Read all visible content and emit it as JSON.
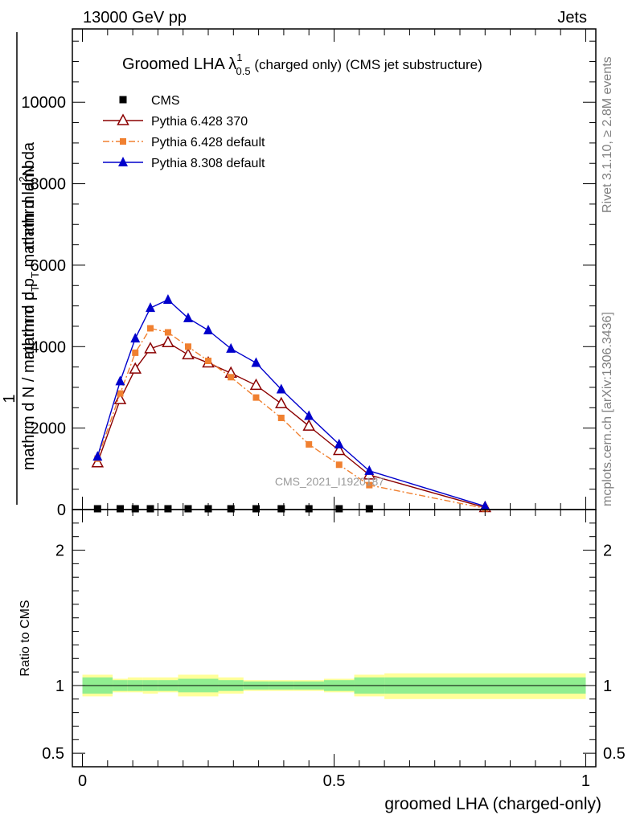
{
  "header": {
    "energy": "13000 GeV pp",
    "process": "Jets",
    "side_label_top": "Rivet 3.1.10, ≥ 2.8M events",
    "side_label_bottom": "mcplots.cern.ch [arXiv:1306.3436]",
    "watermark": "CMS_2021_I1920187"
  },
  "chart_data": [
    {
      "panel": "main",
      "type": "line",
      "title_main": "Groomed LHA ",
      "title_lambda": "λ",
      "title_sup": "1",
      "title_sub": "0.5",
      "title_rest": " (charged only) (CMS jet substructure)",
      "ylabel_num_prefix": "1",
      "ylabel_num": "mathrm d",
      "ylabel_num_sup": "2",
      "ylabel_num_rest": "N",
      "ylabel_den": "mathrm d p",
      "ylabel_den_sub": "T",
      "ylabel_den_rest": " mathrm d lambda",
      "ylabel_bottom": "mathrm d N / mathrm d p",
      "ylabel_bottom_sub": "T",
      "xlim": [
        -0.02,
        1.02
      ],
      "ylim": [
        0,
        11800
      ],
      "yticks": [
        0,
        2000,
        4000,
        6000,
        8000,
        10000
      ],
      "ytick_labels": [
        "0",
        "2000",
        "4000",
        "6000",
        "8000",
        "10000"
      ],
      "legend_position": "top-left",
      "x": [
        0.03,
        0.075,
        0.105,
        0.135,
        0.17,
        0.21,
        0.25,
        0.295,
        0.345,
        0.395,
        0.45,
        0.51,
        0.57,
        0.8
      ],
      "series": [
        {
          "name": "CMS",
          "color": "#000000",
          "marker": "square",
          "values": [
            0,
            0,
            0,
            0,
            0,
            0,
            0,
            0,
            0,
            0,
            0,
            0,
            0,
            null
          ]
        },
        {
          "name": "Pythia 6.428 370",
          "color": "#8b0000",
          "marker": "triangle-open",
          "dash": "",
          "values": [
            1150,
            2700,
            3450,
            3950,
            4100,
            3800,
            3600,
            3350,
            3050,
            2600,
            2050,
            1450,
            850,
            50
          ]
        },
        {
          "name": "Pythia 6.428 default",
          "color": "#f08030",
          "marker": "square-small",
          "dash": "8,3,2,3",
          "values": [
            1250,
            2850,
            3850,
            4450,
            4350,
            4000,
            3650,
            3250,
            2750,
            2250,
            1600,
            1100,
            600,
            30
          ]
        },
        {
          "name": "Pythia 8.308 default",
          "color": "#0000cc",
          "marker": "triangle-filled",
          "dash": "",
          "values": [
            1300,
            3150,
            4200,
            4950,
            5150,
            4700,
            4400,
            3950,
            3600,
            2950,
            2300,
            1600,
            950,
            80
          ]
        }
      ]
    },
    {
      "panel": "ratio",
      "type": "area",
      "ylabel": "Ratio to CMS",
      "xlabel": "groomed LHA (charged-only)",
      "xlim": [
        -0.02,
        1.02
      ],
      "xticks": [
        0,
        0.5,
        1
      ],
      "xtick_labels": [
        "0",
        "0.5",
        "1"
      ],
      "ylim": [
        0.4,
        2.3
      ],
      "yticks": [
        0.5,
        1,
        2
      ],
      "ytick_labels": [
        "0.5",
        "1",
        "2"
      ],
      "bin_edges": [
        0,
        0.06,
        0.09,
        0.12,
        0.15,
        0.19,
        0.23,
        0.27,
        0.32,
        0.37,
        0.42,
        0.48,
        0.54,
        0.6,
        1.0
      ],
      "band_green_low": [
        0.94,
        0.96,
        0.96,
        0.96,
        0.96,
        0.95,
        0.95,
        0.96,
        0.97,
        0.97,
        0.97,
        0.96,
        0.94,
        0.94
      ],
      "band_green_high": [
        1.06,
        1.04,
        1.04,
        1.04,
        1.04,
        1.05,
        1.05,
        1.04,
        1.03,
        1.03,
        1.03,
        1.04,
        1.06,
        1.06
      ],
      "band_yellow_low": [
        0.92,
        0.95,
        0.95,
        0.94,
        0.95,
        0.92,
        0.92,
        0.94,
        0.96,
        0.96,
        0.96,
        0.95,
        0.92,
        0.9
      ],
      "band_yellow_high": [
        1.08,
        1.05,
        1.06,
        1.06,
        1.06,
        1.08,
        1.08,
        1.06,
        1.04,
        1.04,
        1.04,
        1.05,
        1.08,
        1.09
      ],
      "band_green_color": "#90ee90",
      "band_yellow_color": "#ffff99",
      "reference_line": 1
    }
  ]
}
